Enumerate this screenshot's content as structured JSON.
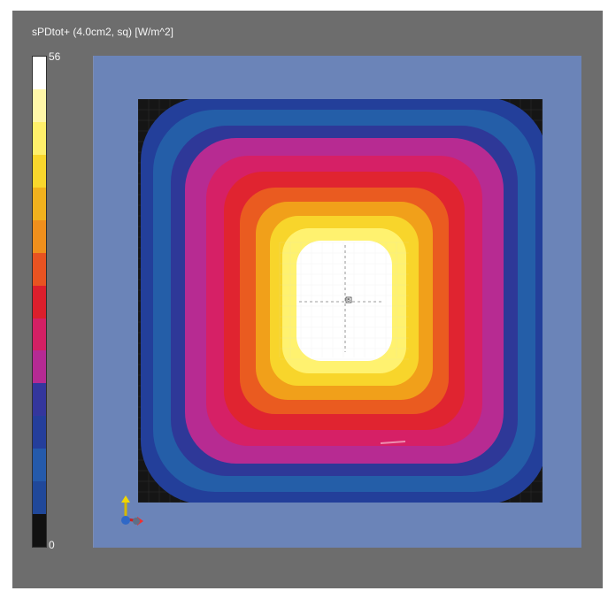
{
  "view": {
    "title": "sPDtot+ (4.0cm2, sq) [W/m^2]"
  },
  "legend": {
    "max_label": "56",
    "min_label": "0",
    "colors": [
      "#ffffff",
      "#fff7a8",
      "#fff06a",
      "#f9d72c",
      "#f1b11d",
      "#ef8f1c",
      "#e85321",
      "#dc1f2c",
      "#d32064",
      "#b52a93",
      "#34369d",
      "#243e9b",
      "#245aab",
      "#20489a",
      "#111111"
    ]
  },
  "field": {
    "description_levels": [
      "#233f9a",
      "#245ea8",
      "#2e3898",
      "#b72b92",
      "#d62066",
      "#e02430",
      "#ea5b20",
      "#f1a01a",
      "#f8d52b",
      "#fff26f",
      "#ffffff"
    ],
    "center_marker": "B"
  },
  "icons": {
    "axes": "xyz-axes-icon"
  }
}
